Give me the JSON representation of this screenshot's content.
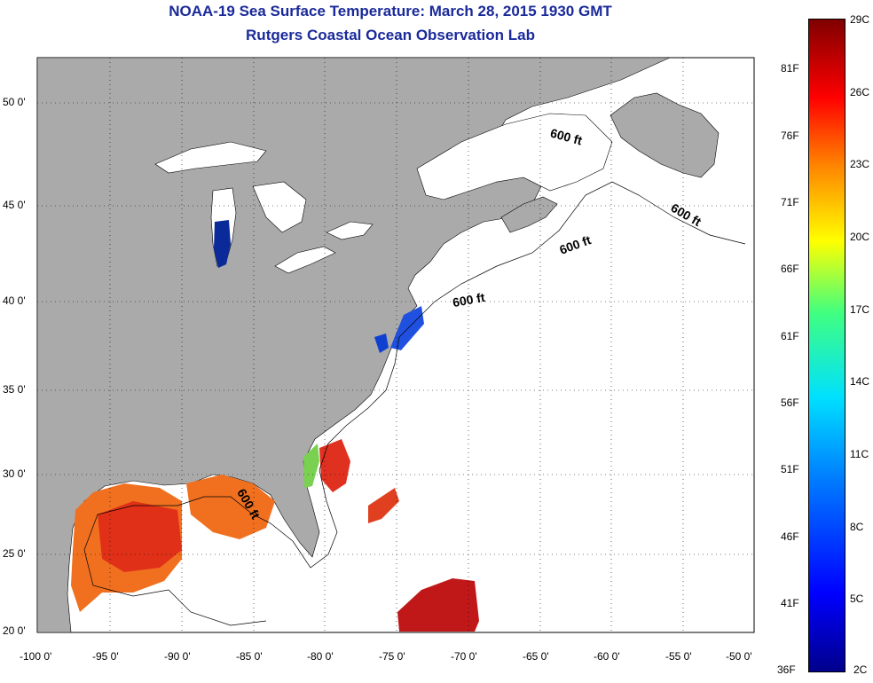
{
  "header": {
    "title": "NOAA-19 Sea Surface Temperature:  March 28, 2015 1930 GMT",
    "subtitle": "Rutgers Coastal Ocean Observation Lab"
  },
  "map": {
    "lon_ticks": [
      "-100 0'",
      "-95 0'",
      "-90 0'",
      "-85 0'",
      "-80 0'",
      "-75 0'",
      "-70 0'",
      "-65 0'",
      "-60 0'",
      "-55 0'",
      "-50 0'"
    ],
    "lat_ticks": [
      "20 0'",
      "25 0'",
      "30 0'",
      "35 0'",
      "40 0'",
      "45 0'",
      "50 0'"
    ],
    "contour_labels": [
      "600 ft",
      "600 ft",
      "600 ft",
      "600 ft",
      "600 ft"
    ]
  },
  "colorbar": {
    "celsius": [
      "29C",
      "26C",
      "23C",
      "20C",
      "17C",
      "14C",
      "11C",
      "8C",
      "5C",
      "2C"
    ],
    "fahrenheit": [
      "81F",
      "76F",
      "71F",
      "66F",
      "61F",
      "56F",
      "51F",
      "46F",
      "41F",
      "36F"
    ]
  },
  "colors": {
    "land": "#aaaaaa",
    "title": "#1a2a9a"
  }
}
